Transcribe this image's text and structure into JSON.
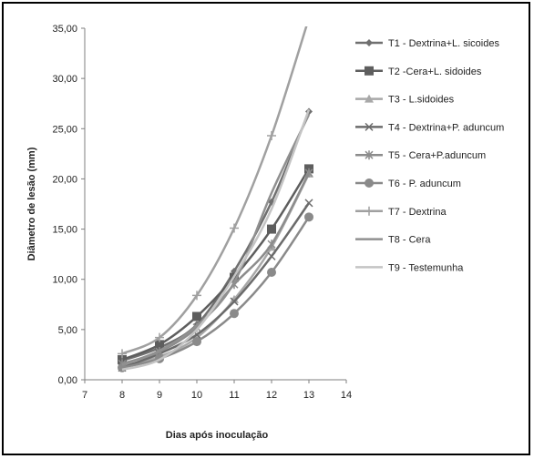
{
  "chart_data": {
    "type": "line",
    "xlabel": "Dias após inoculação",
    "ylabel": "Diâmetro de lesão (mm)",
    "xlim": [
      7,
      14
    ],
    "ylim": [
      0,
      35
    ],
    "x_ticks": [
      "7",
      "8",
      "9",
      "10",
      "11",
      "12",
      "13",
      "14"
    ],
    "y_ticks": [
      "0,00",
      "5,00",
      "10,00",
      "15,00",
      "20,00",
      "25,00",
      "30,00",
      "35,00"
    ],
    "grid": false,
    "legend_position": "right",
    "x": [
      8,
      9,
      10,
      11,
      12,
      13
    ],
    "series": [
      {
        "name": "T1 - Dextrina+L. sicoides",
        "marker": "diamond",
        "color": "#707070",
        "values": [
          1.9,
          3.2,
          5.5,
          10.8,
          17.7,
          26.7
        ]
      },
      {
        "name": "T2 -Cera+L. sidoides",
        "marker": "square",
        "color": "#5e5e5e",
        "values": [
          2.0,
          3.5,
          6.3,
          10.2,
          15.0,
          21.0
        ]
      },
      {
        "name": "T3 - L.sidoides",
        "marker": "triangle",
        "color": "#a8a8a8",
        "values": [
          1.4,
          2.3,
          4.2,
          8.0,
          13.2,
          20.5
        ]
      },
      {
        "name": "T4 - Dextrina+P. aduncum",
        "marker": "x",
        "color": "#6b6b6b",
        "values": [
          1.2,
          2.6,
          4.5,
          7.8,
          12.3,
          17.6
        ]
      },
      {
        "name": "T5 - Cera+P.aduncum",
        "marker": "star",
        "color": "#8c8c8c",
        "values": [
          1.6,
          2.8,
          5.2,
          9.5,
          13.5,
          20.6
        ]
      },
      {
        "name": "T6 - P. aduncum",
        "marker": "circle",
        "color": "#8a8a8a",
        "values": [
          1.2,
          2.1,
          3.8,
          6.6,
          10.7,
          16.2
        ]
      },
      {
        "name": "T7 - Dextrina",
        "marker": "plus",
        "color": "#a0a0a0",
        "values": [
          2.6,
          4.2,
          8.4,
          15.1,
          24.3,
          36.0
        ]
      },
      {
        "name": "T8 - Cera",
        "marker": "none",
        "color": "#909090",
        "values": [
          1.5,
          2.9,
          5.4,
          9.7,
          18.6,
          26.4
        ]
      },
      {
        "name": "T9 - Testemunha",
        "marker": "none",
        "color": "#c4c4c4",
        "values": [
          1.0,
          2.0,
          5.0,
          10.3,
          17.0,
          26.9
        ]
      }
    ]
  }
}
